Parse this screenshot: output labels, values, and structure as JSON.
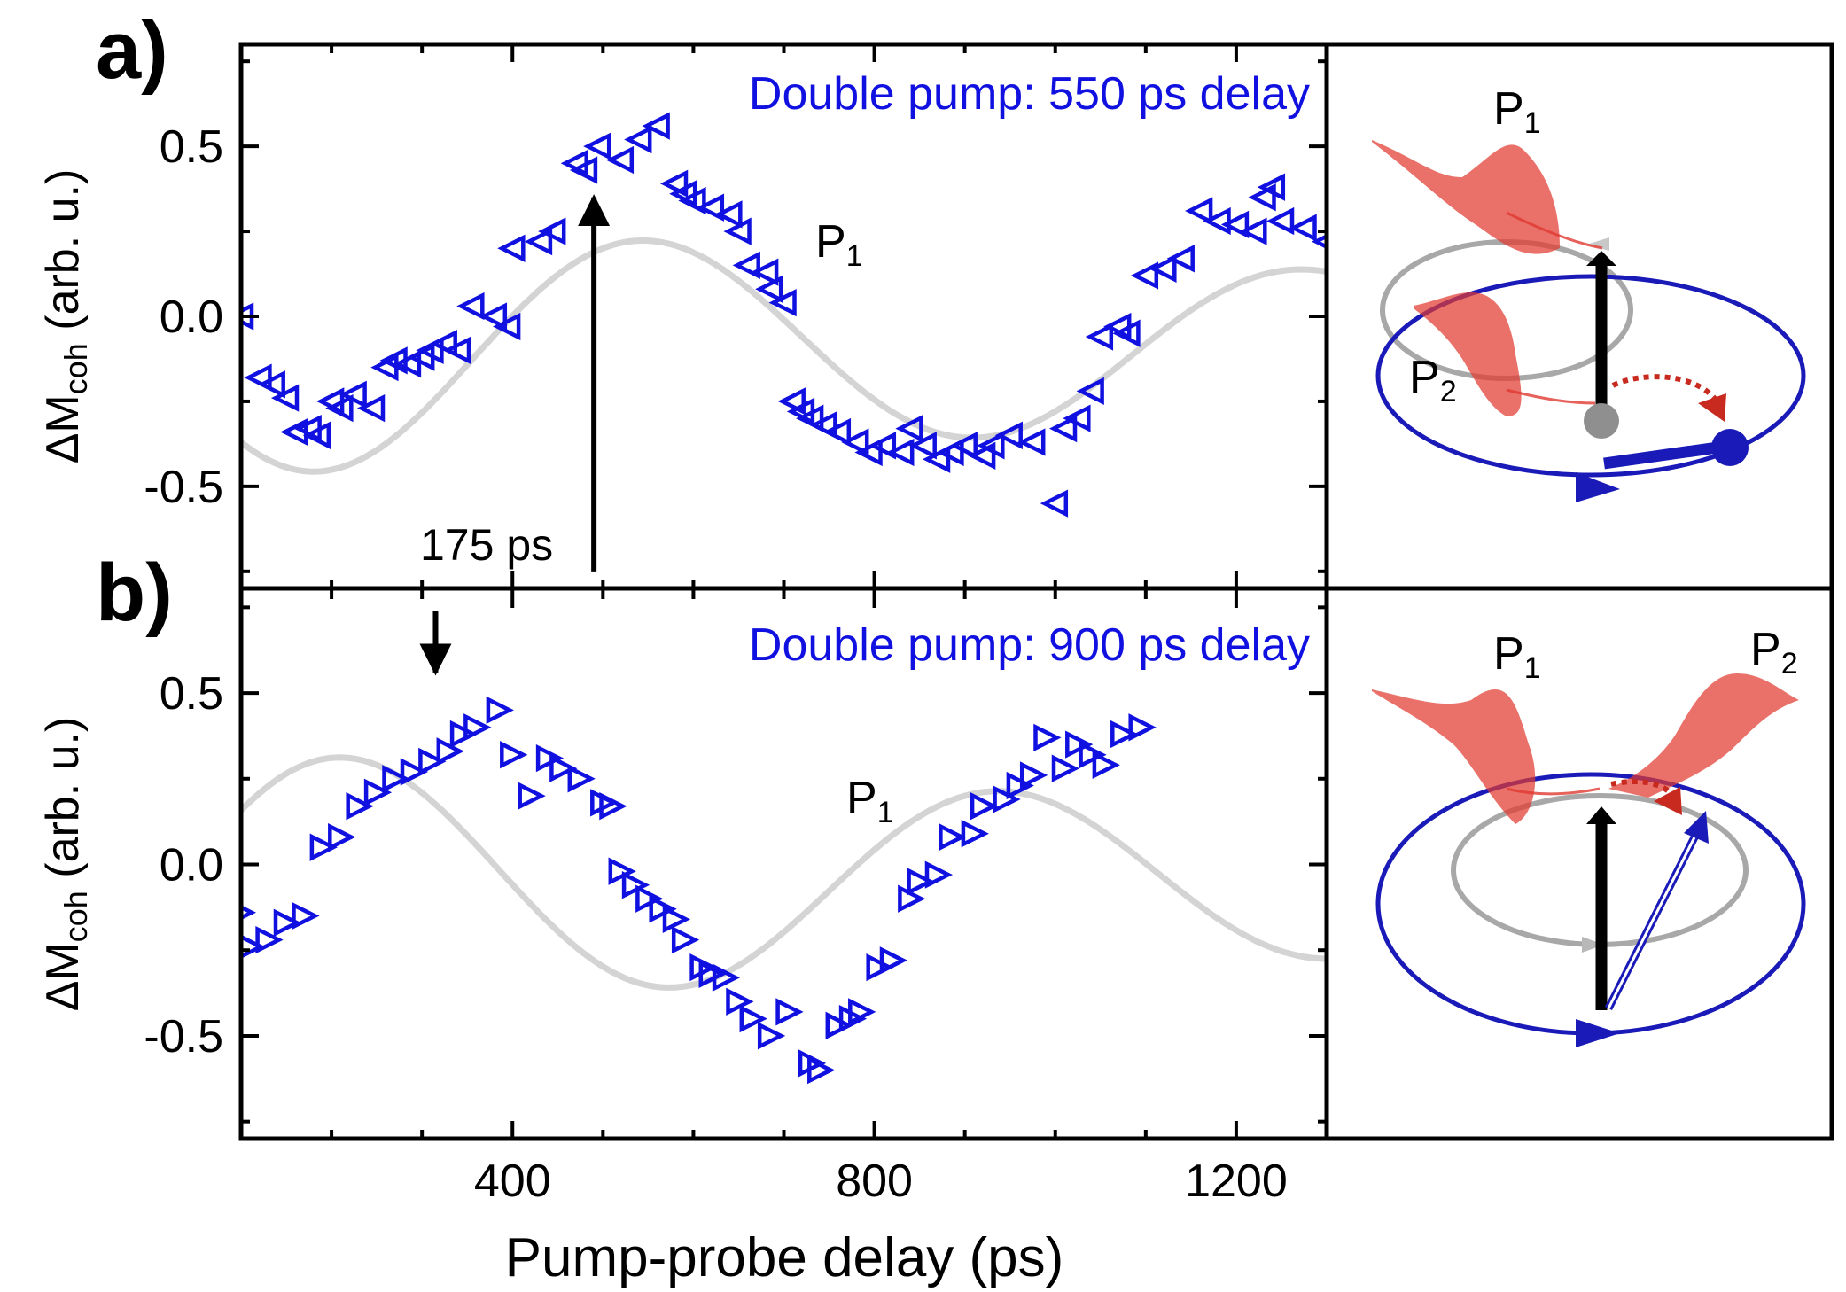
{
  "chart_data": {
    "type": "scatter",
    "xlabel": "Pump-probe delay (ps)",
    "ylabel_main": "ΔM",
    "ylabel_sub": "coh",
    "ylabel_tail": " (arb. u.)",
    "xlim": [
      100,
      1300
    ],
    "ylim": [
      -0.8,
      0.8
    ],
    "xticks": [
      400,
      800,
      1200
    ],
    "xtick_labels": [
      "400",
      "800",
      "1200"
    ],
    "yticks": [
      0.5,
      0.0,
      -0.5
    ],
    "ytick_labels": [
      "0.5",
      "0.0",
      "-0.5"
    ],
    "colors": {
      "data": "#1010e0",
      "reference": "#d4d4d4",
      "arrow": "#000000",
      "pulse": "#e03a2f"
    },
    "panels": [
      {
        "label": "a)",
        "title": "Double pump: 550 ps delay",
        "marker": "left-triangle",
        "reference_label": "P",
        "reference_label_sub": "1",
        "reference_curve": {
          "amplitude": 0.38,
          "offset": -0.09,
          "period_ps": 728,
          "peak_ps": 550,
          "damping_ps": 2300
        },
        "arrow_annotation": {
          "label": "175 ps",
          "x_ps": 490,
          "y_from": -0.75,
          "y_to": 0.35
        },
        "series": {
          "name": "Double pump: 550 ps delay",
          "x": [
            100,
            120,
            135,
            150,
            160,
            175,
            185,
            200,
            210,
            225,
            245,
            260,
            270,
            285,
            300,
            310,
            325,
            340,
            355,
            380,
            395,
            400,
            430,
            445,
            470,
            480,
            495,
            520,
            540,
            560,
            580,
            590,
            600,
            620,
            640,
            650,
            660,
            680,
            685,
            700,
            710,
            720,
            730,
            745,
            760,
            780,
            795,
            810,
            830,
            840,
            855,
            870,
            885,
            900,
            920,
            930,
            950,
            975,
            1000,
            1010,
            1025,
            1040,
            1050,
            1070,
            1080,
            1100,
            1120,
            1140,
            1160,
            1180,
            1200,
            1220,
            1230,
            1240,
            1250,
            1275,
            1300
          ],
          "y": [
            0.0,
            -0.18,
            -0.2,
            -0.24,
            -0.34,
            -0.33,
            -0.35,
            -0.25,
            -0.27,
            -0.23,
            -0.27,
            -0.15,
            -0.13,
            -0.14,
            -0.12,
            -0.1,
            -0.08,
            -0.1,
            0.03,
            0.0,
            -0.03,
            0.2,
            0.22,
            0.25,
            0.45,
            0.43,
            0.5,
            0.46,
            0.52,
            0.56,
            0.39,
            0.36,
            0.34,
            0.32,
            0.3,
            0.25,
            0.15,
            0.13,
            0.08,
            0.04,
            -0.25,
            -0.28,
            -0.3,
            -0.32,
            -0.34,
            -0.37,
            -0.4,
            -0.38,
            -0.4,
            -0.33,
            -0.38,
            -0.42,
            -0.4,
            -0.38,
            -0.41,
            -0.38,
            -0.35,
            -0.37,
            -0.55,
            -0.33,
            -0.3,
            -0.22,
            -0.06,
            -0.03,
            -0.05,
            0.12,
            0.14,
            0.17,
            0.31,
            0.28,
            0.27,
            0.25,
            0.35,
            0.38,
            0.28,
            0.26,
            0.22
          ]
        }
      },
      {
        "label": "b)",
        "title": "Double pump: 900 ps delay",
        "marker": "right-triangle",
        "reference_label": "P",
        "reference_label_sub": "1",
        "reference_curve": {
          "amplitude": 0.38,
          "offset": -0.05,
          "period_ps": 728,
          "peak_ps": 215,
          "damping_ps": 2300
        },
        "arrow_annotation": {
          "label": "",
          "x_ps": 315,
          "y_from": 0.74,
          "y_to": 0.56
        },
        "series": {
          "name": "Double pump: 900 ps delay",
          "x": [
            100,
            110,
            130,
            150,
            170,
            190,
            210,
            230,
            250,
            270,
            290,
            310,
            330,
            345,
            360,
            385,
            400,
            420,
            440,
            455,
            475,
            500,
            510,
            520,
            535,
            550,
            565,
            580,
            590,
            610,
            620,
            635,
            650,
            665,
            685,
            705,
            730,
            740,
            760,
            775,
            785,
            805,
            820,
            840,
            850,
            870,
            885,
            910,
            920,
            945,
            960,
            975,
            990,
            1010,
            1025,
            1040,
            1055,
            1075,
            1095
          ],
          "y": [
            -0.14,
            -0.24,
            -0.22,
            -0.17,
            -0.15,
            0.05,
            0.08,
            0.17,
            0.21,
            0.25,
            0.27,
            0.3,
            0.33,
            0.38,
            0.4,
            0.45,
            0.32,
            0.2,
            0.31,
            0.28,
            0.25,
            0.18,
            0.17,
            -0.02,
            -0.06,
            -0.1,
            -0.13,
            -0.16,
            -0.22,
            -0.3,
            -0.32,
            -0.33,
            -0.4,
            -0.45,
            -0.5,
            -0.43,
            -0.58,
            -0.6,
            -0.47,
            -0.45,
            -0.43,
            -0.3,
            -0.28,
            -0.1,
            -0.05,
            -0.03,
            0.08,
            0.09,
            0.17,
            0.19,
            0.23,
            0.26,
            0.37,
            0.28,
            0.35,
            0.32,
            0.29,
            0.38,
            0.4
          ]
        }
      }
    ],
    "insets": [
      {
        "p1_label": "P",
        "p1_sub": "1",
        "p2_label": "P",
        "p2_sub": "2"
      },
      {
        "p1_label": "P",
        "p1_sub": "1",
        "p2_label": "P",
        "p2_sub": "2"
      }
    ]
  }
}
